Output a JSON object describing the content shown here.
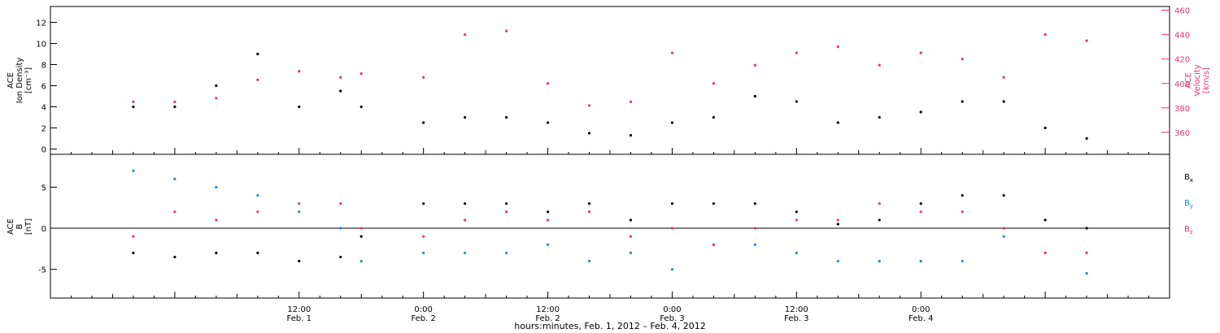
{
  "chart_data": [
    {
      "type": "scatter",
      "panel": "top",
      "ylabel_left": [
        "ACE",
        "Ion Density",
        "[cm⁻³]"
      ],
      "ylabel_right": [
        "ACE",
        "Velocity",
        "[km/s]"
      ],
      "y_left_ticks": [
        "0",
        "2",
        "4",
        "6",
        "8",
        "10",
        "12"
      ],
      "y_left_range": [
        -0.5,
        13.5
      ],
      "y_right_ticks": [
        "360",
        "380",
        "400",
        "420",
        "440",
        "460"
      ],
      "y_right_range": [
        342,
        463
      ],
      "x_range_hours": [
        -12,
        96
      ],
      "series": [
        {
          "color": "#000000",
          "axis": "left",
          "hours": [
            -4,
            0,
            4,
            8,
            12,
            16,
            18,
            20,
            24,
            28,
            32,
            36,
            40,
            44,
            48,
            52,
            56,
            60,
            64,
            68,
            72,
            76,
            80,
            84,
            88,
            92,
            96
          ],
          "values": [
            4.0,
            4.0,
            6.0,
            9.0,
            4.0,
            5.5,
            4.0,
            null,
            2.5,
            3.0,
            3.0,
            2.5,
            1.5,
            1.3,
            2.5,
            3.0,
            5.0,
            4.5,
            2.5,
            3.0,
            3.5,
            4.5,
            4.5,
            2.0,
            1.0,
            null,
            null
          ]
        },
        {
          "color": "#e8336d",
          "axis": "right",
          "hours": [
            -4,
            0,
            4,
            8,
            12,
            16,
            18,
            20,
            24,
            28,
            32,
            36,
            40,
            44,
            48,
            52,
            56,
            60,
            64,
            68,
            72,
            76,
            80,
            84,
            88,
            92,
            96
          ],
          "values": [
            385,
            385,
            388,
            403,
            410,
            405,
            408,
            null,
            405,
            440,
            443,
            400,
            382,
            385,
            425,
            400,
            415,
            425,
            430,
            415,
            425,
            420,
            405,
            440,
            435,
            null,
            null
          ]
        }
      ]
    },
    {
      "type": "scatter",
      "panel": "bottom",
      "ylabel_left": [
        "ACE",
        "B",
        "[nT]"
      ],
      "y_ticks": [
        "-5",
        "0",
        "5"
      ],
      "y_range": [
        -8.5,
        9
      ],
      "x_range_hours": [
        -12,
        96
      ],
      "series": [
        {
          "name": "Bx",
          "color": "#000000",
          "hours": [
            -4,
            0,
            4,
            8,
            12,
            16,
            18,
            20,
            24,
            28,
            32,
            36,
            40,
            44,
            48,
            52,
            56,
            60,
            64,
            68,
            72,
            76,
            80,
            84,
            88,
            92,
            96
          ],
          "values": [
            -3,
            -3.5,
            -3,
            -3,
            -4,
            -3.5,
            -1,
            null,
            3,
            3,
            3,
            2,
            3,
            1,
            3,
            3,
            3,
            2,
            0.5,
            1,
            3,
            4,
            4,
            1,
            0,
            null,
            null
          ]
        },
        {
          "name": "By",
          "color": "#1e88e5",
          "hours": [
            -4,
            0,
            4,
            8,
            12,
            16,
            18,
            20,
            24,
            28,
            32,
            36,
            40,
            44,
            48,
            52,
            56,
            60,
            64,
            68,
            72,
            76,
            80,
            84,
            88,
            92,
            96
          ],
          "values": [
            7,
            6,
            5,
            4,
            2,
            0,
            -4,
            null,
            -3,
            -3,
            -3,
            -2,
            -4,
            -3,
            -5,
            -2,
            -2,
            -3,
            -4,
            -4,
            -4,
            -4,
            -1,
            -3,
            -5.5,
            null,
            null
          ]
        },
        {
          "name": "Bz",
          "color": "#e8336d",
          "hours": [
            -4,
            0,
            4,
            8,
            12,
            16,
            18,
            20,
            24,
            28,
            32,
            36,
            40,
            44,
            48,
            52,
            56,
            60,
            64,
            68,
            72,
            76,
            80,
            84,
            88,
            92,
            96
          ],
          "values": [
            -1,
            2,
            1,
            2,
            3,
            3,
            0,
            null,
            -1,
            1,
            2,
            1,
            2,
            -1,
            0,
            -2,
            0,
            1,
            1,
            3,
            2,
            2,
            0,
            -3,
            -3,
            null,
            null
          ]
        }
      ],
      "legend": [
        {
          "main": "B",
          "sub": "x",
          "color": "#000000"
        },
        {
          "main": "B",
          "sub": "y",
          "color": "#1e88e5"
        },
        {
          "main": "B",
          "sub": "z",
          "color": "#e8336d"
        }
      ]
    }
  ],
  "x_axis": {
    "ticks": [
      {
        "hour": 12,
        "time": "12:00",
        "date": "Feb. 1"
      },
      {
        "hour": 24,
        "time": "0:00",
        "date": "Feb. 2"
      },
      {
        "hour": 36,
        "time": "12:00",
        "date": "Feb. 2"
      },
      {
        "hour": 48,
        "time": "0:00",
        "date": "Feb. 3"
      },
      {
        "hour": 60,
        "time": "12:00",
        "date": "Feb. 3"
      },
      {
        "hour": 72,
        "time": "0:00",
        "date": "Feb. 4"
      }
    ],
    "xlabel": "hours:minutes, Feb.  1, 2012 – Feb.  4, 2012"
  }
}
